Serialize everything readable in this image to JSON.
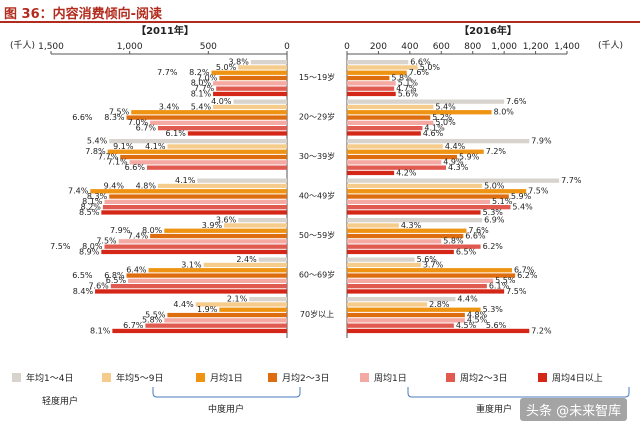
{
  "figure_title": "图 36：内容消费倾向-阅读",
  "watermark": "头条 @未来智库",
  "chart_data": [
    {
      "type": "bar",
      "orientation": "horizontal",
      "direction": "right-to-left",
      "title": "【2011年】",
      "unit_label": "(千人)",
      "xlim": [
        0,
        1500
      ],
      "xticks": [
        1500,
        1000,
        500,
        0
      ],
      "xtick_labels": [
        "1,500",
        "1,000",
        "500",
        "0"
      ],
      "categories": [
        "15～19岁",
        "20～29岁",
        "30～39岁",
        "40～49岁",
        "50～59岁",
        "60～69岁",
        "70岁以上"
      ],
      "series": [
        {
          "name": "年均1～4日",
          "values": [
            230,
            340,
            1130,
            570,
            310,
            180,
            240
          ],
          "labels": [
            "3.8%",
            "4.0%",
            "5.4%",
            "4.1%",
            "3.6%",
            "2.4%",
            "2.1%"
          ]
        },
        {
          "name": "年均5～9日",
          "values": [
            310,
            470,
            760,
            820,
            400,
            530,
            580
          ],
          "labels": [
            "5.0%",
            "5.4%",
            "4.1%",
            "4.8%",
            "3.9%",
            "3.1%",
            "4.4%"
          ]
        },
        {
          "name": "月均1日",
          "values": [
            480,
            990,
            1140,
            1250,
            780,
            880,
            430
          ],
          "labels": [
            "8.2%",
            "7.5%",
            "7.8%",
            "7.4%",
            "8.0%",
            "6.4%",
            "1.9%"
          ]
        },
        {
          "name": "月均2～3日",
          "values": [
            430,
            1020,
            1060,
            1130,
            870,
            1020,
            760
          ],
          "labels": [
            "7.0%",
            "8.3%",
            "7.7%",
            "8.3%",
            "7.4%",
            "6.8%",
            "5.5%"
          ]
        },
        {
          "name": "周均1日",
          "values": [
            470,
            870,
            1000,
            1160,
            1070,
            1010,
            780
          ],
          "labels": [
            "8.0%",
            "7.0%",
            "7.1%",
            "8.1%",
            "7.5%",
            "6.5%",
            "5.8%"
          ]
        },
        {
          "name": "周均2～3日",
          "values": [
            450,
            820,
            890,
            1170,
            1160,
            1120,
            900
          ],
          "labels": [
            "7.7%",
            "6.7%",
            "6.6%",
            "8.2%",
            "8.0%",
            "7.6%",
            "6.7%"
          ]
        },
        {
          "name": "周均4日以上",
          "values": [
            470,
            630,
            null,
            1180,
            1180,
            1220,
            1110
          ],
          "labels": [
            "8.1%",
            "6.1%",
            "",
            "8.5%",
            "8.9%",
            "8.4%",
            "8.1%"
          ]
        }
      ],
      "extra_labels": [
        {
          "row": 0,
          "bar": 2,
          "text": "7.7%"
        },
        {
          "row": 1,
          "bar": 1,
          "text": "3.4%"
        },
        {
          "row": 1,
          "bar": 3,
          "text": "6.6%"
        },
        {
          "row": 2,
          "bar": 1,
          "text": "9.1%"
        },
        {
          "row": 3,
          "bar": 1,
          "text": "9.4%"
        },
        {
          "row": 4,
          "bar": 2,
          "text": "7.9%"
        },
        {
          "row": 4,
          "bar": 5,
          "text": "7.5%"
        },
        {
          "row": 5,
          "bar": 3,
          "text": "6.5%"
        }
      ]
    },
    {
      "type": "bar",
      "orientation": "horizontal",
      "direction": "left-to-right",
      "title": "【2016年】",
      "unit_label": "(千人)",
      "xlim": [
        0,
        1400
      ],
      "xticks": [
        0,
        200,
        400,
        600,
        800,
        1000,
        1200,
        1400
      ],
      "xtick_labels": [
        "0",
        "200",
        "400",
        "600",
        "800",
        "1,000",
        "1,200",
        "1,400"
      ],
      "categories": [
        "15～19岁",
        "20～29岁",
        "30～39岁",
        "40～49岁",
        "50～59岁",
        "60～69岁",
        "70岁以上"
      ],
      "series": [
        {
          "name": "年均1～4日",
          "values": [
            390,
            1000,
            1160,
            1350,
            860,
            430,
            690
          ],
          "labels": [
            "6.6%",
            "7.6%",
            "7.9%",
            "7.7%",
            "6.9%",
            "5.6%",
            "4.4%"
          ]
        },
        {
          "name": "年均5～9日",
          "values": [
            450,
            550,
            610,
            860,
            330,
            470,
            510
          ],
          "labels": [
            "5.0%",
            "5.4%",
            "4.4%",
            "5.0%",
            "4.3%",
            "3.7%",
            "2.8%"
          ]
        },
        {
          "name": "月均1日",
          "values": [
            380,
            920,
            870,
            1140,
            760,
            1050,
            850
          ],
          "labels": [
            "7.6%",
            "8.0%",
            "7.2%",
            "7.5%",
            "7.6%",
            "6.7%",
            "5.3%"
          ]
        },
        {
          "name": "月均2～3日",
          "values": [
            270,
            530,
            700,
            1030,
            740,
            1070,
            750
          ],
          "labels": [
            "5.8%",
            "5.2%",
            "5.9%",
            "5.9%",
            "6.6%",
            "6.2%",
            "4.8%"
          ]
        },
        {
          "name": "周均1日",
          "values": [
            310,
            550,
            600,
            910,
            600,
            930,
            750
          ],
          "labels": [
            "5.1%",
            "5.0%",
            "4.9%",
            "5.1%",
            "5.8%",
            "5.5%",
            "4.5%"
          ]
        },
        {
          "name": "周均2～3日",
          "values": [
            300,
            480,
            630,
            1040,
            850,
            890,
            680
          ],
          "labels": [
            "4.7%",
            "4.1%",
            "4.3%",
            "5.4%",
            "6.2%",
            "6.1%",
            "4.5%"
          ]
        },
        {
          "name": "周均4日以上",
          "values": [
            310,
            470,
            300,
            850,
            680,
            1000,
            1160
          ],
          "labels": [
            "5.6%",
            "4.6%",
            "4.2%",
            "5.3%",
            "6.5%",
            "7.5%",
            "7.2%"
          ]
        }
      ],
      "extra_labels": [
        {
          "row": 6,
          "bar": 5,
          "text": "5.6%"
        }
      ]
    }
  ],
  "legend": [
    {
      "name": "年均1～4日",
      "color": "#d8d4cd"
    },
    {
      "name": "年均5～9日",
      "color": "#f6cc8c"
    },
    {
      "name": "月均1日",
      "color": "#ef9312"
    },
    {
      "name": "月均2～3日",
      "color": "#de6d10"
    },
    {
      "name": "周均1日",
      "color": "#f4aaa3"
    },
    {
      "name": "周均2～3日",
      "color": "#e05a50"
    },
    {
      "name": "周均4日以上",
      "color": "#d42718"
    }
  ],
  "groups": [
    {
      "label": "轻度用户"
    },
    {
      "label": "中度用户"
    },
    {
      "label": "重度用户"
    }
  ]
}
